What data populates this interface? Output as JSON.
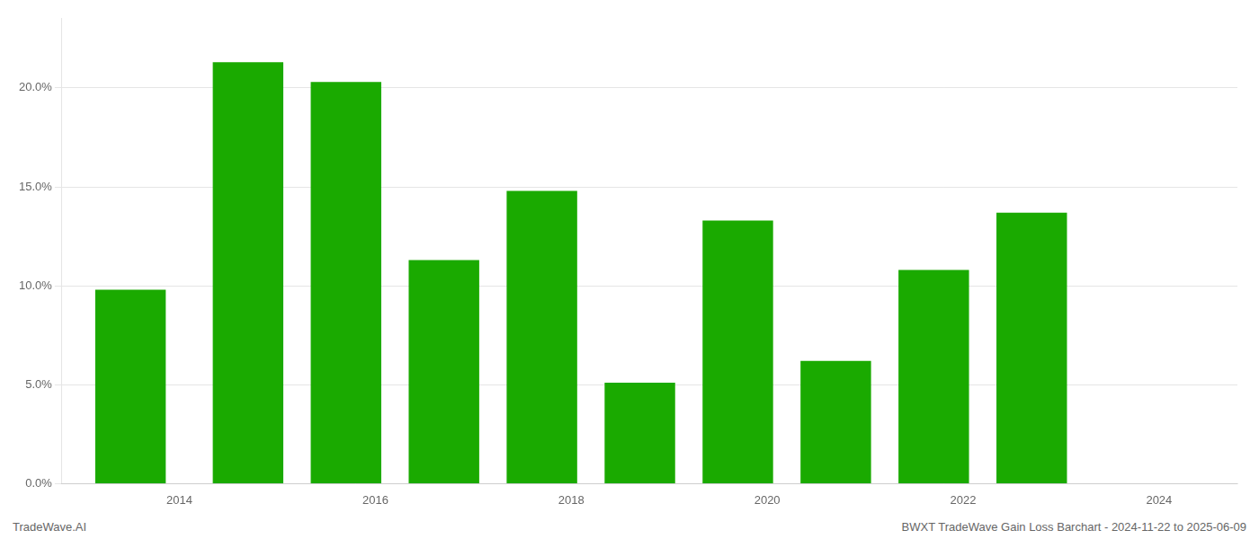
{
  "chart_data": {
    "type": "bar",
    "x": [
      2013.5,
      2014.7,
      2015.7,
      2016.7,
      2017.7,
      2018.7,
      2019.7,
      2020.7,
      2021.7,
      2022.7
    ],
    "values": [
      0.098,
      0.213,
      0.203,
      0.113,
      0.148,
      0.051,
      0.133,
      0.062,
      0.108,
      0.137
    ],
    "color": "#1aaa00",
    "xlim": [
      2012.8,
      2024.8
    ],
    "xticks": [
      2014,
      2016,
      2018,
      2020,
      2022,
      2024
    ],
    "ylim": [
      0.0,
      0.235
    ],
    "yticks": [
      {
        "value": 0.0,
        "label": "0.0%"
      },
      {
        "value": 0.05,
        "label": "5.0%"
      },
      {
        "value": 0.1,
        "label": "10.0%"
      },
      {
        "value": 0.15,
        "label": "15.0%"
      },
      {
        "value": 0.2,
        "label": "20.0%"
      }
    ],
    "grid": true,
    "annotations": [
      "TradeWave.AI",
      "BWXT TradeWave Gain Loss Barchart - 2024-11-22 to 2025-06-09"
    ]
  }
}
